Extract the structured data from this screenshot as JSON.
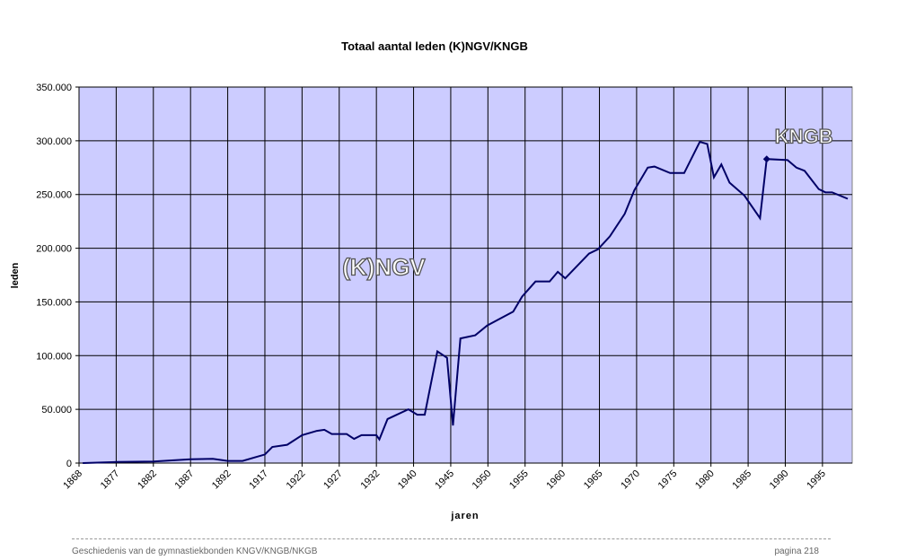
{
  "chart_data": {
    "type": "line",
    "title": "Totaal aantal leden (K)NGV/KNGB",
    "xlabel": "jaren",
    "ylabel": "leden",
    "ylim": [
      0,
      350000
    ],
    "y_ticks": [
      0,
      50000,
      100000,
      150000,
      200000,
      250000,
      300000,
      350000
    ],
    "y_tick_labels": [
      "0",
      "50.000",
      "100.000",
      "150.000",
      "200.000",
      "250.000",
      "300.000",
      "350.000"
    ],
    "x_category_range": [
      0,
      104
    ],
    "x_tick_labels": [
      "1868",
      "1877",
      "1882",
      "1887",
      "1892",
      "1917",
      "1922",
      "1927",
      "1932",
      "1940",
      "1945",
      "1950",
      "1955",
      "1960",
      "1965",
      "1970",
      "1975",
      "1980",
      "1985",
      "1990",
      "1995"
    ],
    "x_tick_every": 5,
    "grid": true,
    "background": "#ccccff",
    "line_color": "#000066",
    "series": [
      {
        "name": "leden",
        "points": [
          [
            0.5,
            0
          ],
          [
            5,
            1000
          ],
          [
            10,
            1500
          ],
          [
            15,
            3500
          ],
          [
            18,
            4000
          ],
          [
            20,
            2000
          ],
          [
            22,
            2000
          ],
          [
            24,
            6000
          ],
          [
            25,
            8000
          ],
          [
            26,
            15000
          ],
          [
            28,
            17000
          ],
          [
            30,
            26000
          ],
          [
            32,
            30000
          ],
          [
            33,
            31000
          ],
          [
            34,
            27000
          ],
          [
            36,
            27000
          ],
          [
            37,
            22500
          ],
          [
            38,
            26000
          ],
          [
            40,
            26000
          ],
          [
            40.4,
            22000
          ],
          [
            41.5,
            41000
          ],
          [
            44.3,
            50000
          ],
          [
            45.5,
            45000
          ],
          [
            46.5,
            45000
          ],
          [
            48.2,
            104000
          ],
          [
            49.5,
            98000
          ],
          [
            50.3,
            35000
          ],
          [
            51.3,
            116000
          ],
          [
            53.3,
            119000
          ],
          [
            54.9,
            128000
          ],
          [
            58.4,
            141000
          ],
          [
            59.6,
            155000
          ],
          [
            61.4,
            169000
          ],
          [
            63.3,
            169000
          ],
          [
            64.4,
            178000
          ],
          [
            65.4,
            172000
          ],
          [
            68.6,
            195000
          ],
          [
            69.8,
            199000
          ],
          [
            71.4,
            211000
          ],
          [
            73.4,
            232000
          ],
          [
            74.7,
            254000
          ],
          [
            76.5,
            275000
          ],
          [
            77.4,
            276000
          ],
          [
            79.5,
            270000
          ],
          [
            81.4,
            270000
          ],
          [
            83.5,
            299000
          ],
          [
            84.5,
            297000
          ],
          [
            85.4,
            266000
          ],
          [
            86.4,
            278000
          ],
          [
            87.5,
            261000
          ],
          [
            89.5,
            249000
          ],
          [
            91.6,
            228000
          ],
          [
            92.5,
            283000
          ],
          [
            95.3,
            282000
          ],
          [
            96.5,
            275000
          ],
          [
            97.6,
            272000
          ],
          [
            99.5,
            255000
          ],
          [
            100.4,
            252000
          ],
          [
            101.3,
            252000
          ],
          [
            103.4,
            246000
          ]
        ]
      }
    ],
    "marker": {
      "x": 92.5,
      "value": 283000
    },
    "annotations": [
      {
        "text": "(K)NGV",
        "x": 41,
        "value": 175000
      },
      {
        "text": "KNGB",
        "x": 97.5,
        "value": 298000
      }
    ]
  },
  "footer": {
    "left": "Geschiedenis van de gymnastiekbonden KNGV/KNGB/NKGB",
    "right": "pagina 218"
  }
}
